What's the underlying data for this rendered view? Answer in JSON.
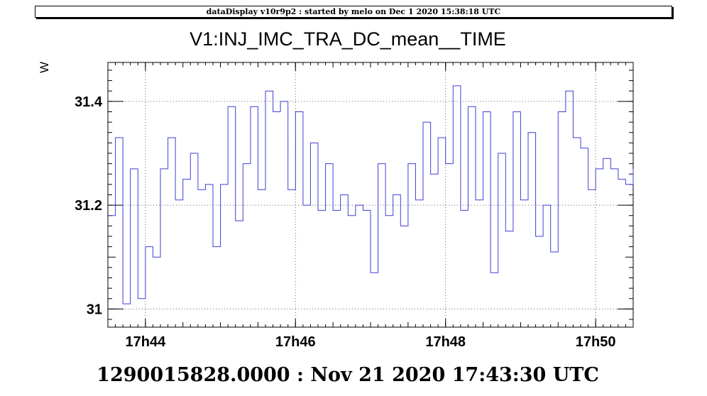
{
  "banner": "dataDisplay v10r9p2 : started by melo on Dec  1 2020 15:38:18 UTC",
  "footer": "1290015828.0000 : Nov 21 2020 17:43:30 UTC",
  "chart_data": {
    "type": "line",
    "title": "V1:INJ_IMC_TRA_DC_mean__TIME",
    "ylabel": "W",
    "xlabel": "",
    "x_ticks": [
      "17h44",
      "17h46",
      "17h48",
      "17h50"
    ],
    "x_tick_minutes": [
      0.5,
      2.5,
      4.5,
      6.5
    ],
    "y_ticks": [
      "31",
      "31.2",
      "31.4"
    ],
    "y_tick_values": [
      31.0,
      31.2,
      31.4
    ],
    "xlim_minutes_from_start": [
      0,
      7.0
    ],
    "ylim": [
      30.965,
      31.475
    ],
    "grid": true,
    "color": "#3f3fd6",
    "series": [
      {
        "step": "stairs",
        "x_minutes": [
          0.0,
          0.1,
          0.2,
          0.3,
          0.4,
          0.5,
          0.6,
          0.7,
          0.8,
          0.9,
          1.0,
          1.1,
          1.2,
          1.3,
          1.4,
          1.5,
          1.6,
          1.7,
          1.8,
          1.9,
          2.0,
          2.1,
          2.2,
          2.3,
          2.4,
          2.5,
          2.6,
          2.7,
          2.8,
          2.9,
          3.0,
          3.1,
          3.2,
          3.3,
          3.4,
          3.5,
          3.6,
          3.7,
          3.8,
          3.9,
          4.0,
          4.1,
          4.2,
          4.3,
          4.4,
          4.5,
          4.6,
          4.7,
          4.8,
          4.9,
          5.0,
          5.1,
          5.2,
          5.3,
          5.4,
          5.5,
          5.6,
          5.7,
          5.8,
          5.9,
          6.0,
          6.1,
          6.2,
          6.3,
          6.4,
          6.5,
          6.6,
          6.7,
          6.8,
          6.9,
          7.0
        ],
        "values": [
          31.18,
          31.33,
          31.01,
          31.27,
          31.02,
          31.12,
          31.1,
          31.27,
          31.33,
          31.21,
          31.25,
          31.3,
          31.23,
          31.24,
          31.12,
          31.24,
          31.39,
          31.17,
          31.28,
          31.39,
          31.23,
          31.42,
          31.38,
          31.4,
          31.23,
          31.38,
          31.2,
          31.32,
          31.19,
          31.28,
          31.19,
          31.22,
          31.18,
          31.2,
          31.19,
          31.07,
          31.28,
          31.18,
          31.22,
          31.16,
          31.28,
          31.21,
          31.36,
          31.26,
          31.33,
          31.28,
          31.43,
          31.19,
          31.39,
          31.21,
          31.38,
          31.07,
          31.3,
          31.15,
          31.38,
          31.21,
          31.34,
          31.14,
          31.2,
          31.11,
          31.38,
          31.42,
          31.33,
          31.31,
          31.23,
          31.27,
          31.29,
          31.27,
          31.25,
          31.24,
          31.27
        ]
      }
    ]
  }
}
